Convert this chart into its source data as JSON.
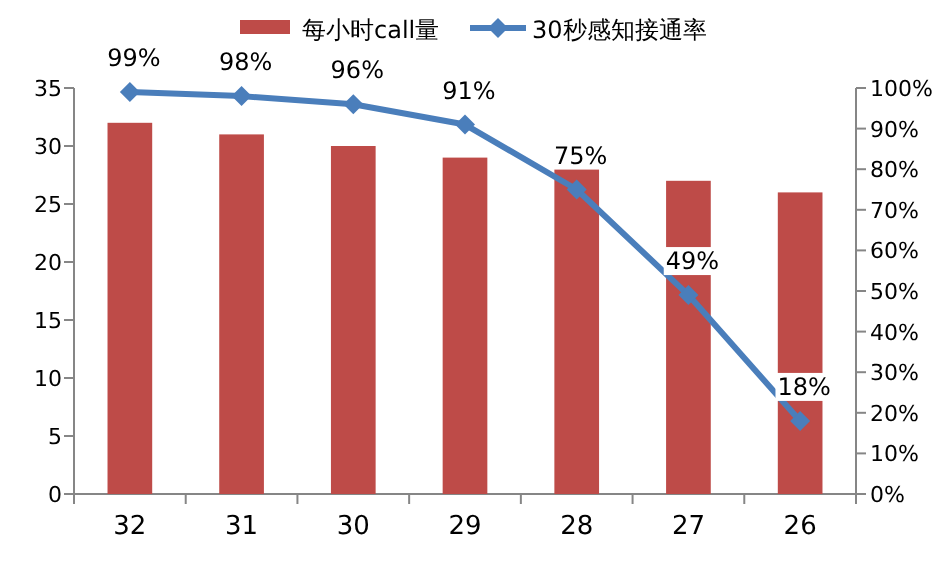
{
  "chart_data": {
    "type": "bar",
    "categories": [
      "32",
      "31",
      "30",
      "29",
      "28",
      "27",
      "26"
    ],
    "series": [
      {
        "name": "每小时call量",
        "color": "#be4b48",
        "values": [
          32,
          31,
          30,
          29,
          28,
          27,
          26
        ]
      },
      {
        "name": "30秒感知接通率",
        "type": "line",
        "axis": "y2",
        "color": "#4a7ebb",
        "marker": "diamond",
        "values": [
          99,
          98,
          96,
          91,
          75,
          49,
          18
        ],
        "value_labels": [
          "99%",
          "98%",
          "96%",
          "91%",
          "75%",
          "49%",
          "18%"
        ]
      }
    ],
    "ylim": [
      0,
      35
    ],
    "yticks": [
      0,
      5,
      10,
      15,
      20,
      25,
      30,
      35
    ],
    "y2lim": [
      0,
      100
    ],
    "y2ticks": [
      {
        "value": 0,
        "label": "0%"
      },
      {
        "value": 10,
        "label": "10%"
      },
      {
        "value": 20,
        "label": "20%"
      },
      {
        "value": 30,
        "label": "30%"
      },
      {
        "value": 40,
        "label": "40%"
      },
      {
        "value": 50,
        "label": "50%"
      },
      {
        "value": 60,
        "label": "60%"
      },
      {
        "value": 70,
        "label": "70%"
      },
      {
        "value": 80,
        "label": "80%"
      },
      {
        "value": 90,
        "label": "90%"
      },
      {
        "value": 100,
        "label": "100%"
      }
    ],
    "legend": "top"
  }
}
